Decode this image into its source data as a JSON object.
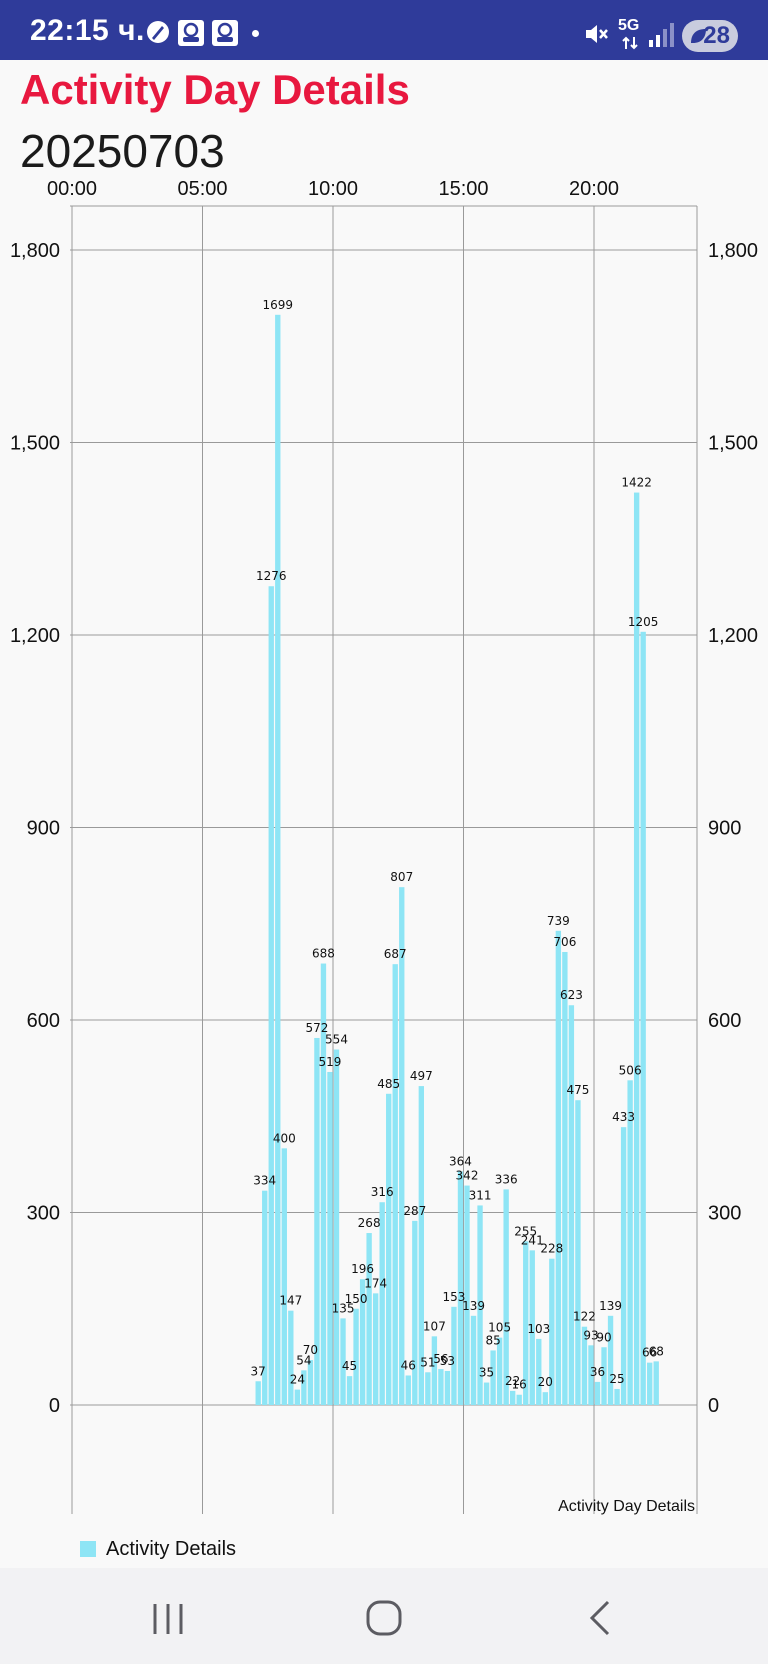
{
  "status_bar": {
    "time": "22:15 ч.",
    "network": "5G",
    "battery": "28",
    "icons": [
      "compass-icon",
      "user-badge-icon",
      "user-badge-icon",
      "notification-dot",
      "mute-icon",
      "data-arrows-icon",
      "signal-icon",
      "battery-icon"
    ]
  },
  "header": {
    "title": "Activity Day Details",
    "date": "20250703"
  },
  "colors": {
    "title": "#e8183f",
    "status_bar": "#2f3b9a",
    "bar_fill": "#8ee5f5",
    "grid": "#9a9a9a"
  },
  "chart_data": {
    "type": "bar",
    "description": "Activity Day Details",
    "legend": [
      {
        "label": "Activity Details",
        "color": "#8ee5f5"
      }
    ],
    "x_axis_position": "top",
    "x_ticks": [
      "00:00",
      "05:00",
      "10:00",
      "15:00",
      "20:00"
    ],
    "xlim_hours": [
      0,
      24
    ],
    "y_ticks": [
      "0",
      "300",
      "600",
      "900",
      "1,200",
      "1,500",
      "1,800"
    ],
    "ylim": [
      0,
      1800
    ],
    "y_axis_both_sides": true,
    "grid": true,
    "bar_interval_minutes": 15,
    "points": [
      {
        "time": "07:00",
        "value": 37
      },
      {
        "time": "07:15",
        "value": 334
      },
      {
        "time": "07:30",
        "value": 1276
      },
      {
        "time": "07:45",
        "value": 1699
      },
      {
        "time": "08:00",
        "value": 400
      },
      {
        "time": "08:15",
        "value": 147
      },
      {
        "time": "08:30",
        "value": 24
      },
      {
        "time": "08:45",
        "value": 54
      },
      {
        "time": "09:00",
        "value": 70
      },
      {
        "time": "09:15",
        "value": 572
      },
      {
        "time": "09:30",
        "value": 688
      },
      {
        "time": "09:45",
        "value": 519
      },
      {
        "time": "10:00",
        "value": 554
      },
      {
        "time": "10:15",
        "value": 135
      },
      {
        "time": "10:30",
        "value": 45
      },
      {
        "time": "10:45",
        "value": 150
      },
      {
        "time": "11:00",
        "value": 196
      },
      {
        "time": "11:15",
        "value": 268
      },
      {
        "time": "11:30",
        "value": 174
      },
      {
        "time": "11:45",
        "value": 316
      },
      {
        "time": "12:00",
        "value": 485
      },
      {
        "time": "12:15",
        "value": 687
      },
      {
        "time": "12:30",
        "value": 807
      },
      {
        "time": "12:45",
        "value": 46
      },
      {
        "time": "13:00",
        "value": 287
      },
      {
        "time": "13:15",
        "value": 497
      },
      {
        "time": "13:30",
        "value": 51
      },
      {
        "time": "13:45",
        "value": 107
      },
      {
        "time": "14:00",
        "value": 56
      },
      {
        "time": "14:15",
        "value": 53
      },
      {
        "time": "14:30",
        "value": 153
      },
      {
        "time": "14:45",
        "value": 364
      },
      {
        "time": "15:00",
        "value": 342
      },
      {
        "time": "15:15",
        "value": 139
      },
      {
        "time": "15:30",
        "value": 311
      },
      {
        "time": "15:45",
        "value": 35
      },
      {
        "time": "16:00",
        "value": 85
      },
      {
        "time": "16:15",
        "value": 105
      },
      {
        "time": "16:30",
        "value": 336
      },
      {
        "time": "16:45",
        "value": 22
      },
      {
        "time": "17:00",
        "value": 16
      },
      {
        "time": "17:15",
        "value": 255
      },
      {
        "time": "17:30",
        "value": 241
      },
      {
        "time": "17:45",
        "value": 103
      },
      {
        "time": "18:00",
        "value": 20
      },
      {
        "time": "18:15",
        "value": 228
      },
      {
        "time": "18:30",
        "value": 739
      },
      {
        "time": "18:45",
        "value": 706
      },
      {
        "time": "19:00",
        "value": 623
      },
      {
        "time": "19:15",
        "value": 475
      },
      {
        "time": "19:30",
        "value": 122
      },
      {
        "time": "19:45",
        "value": 93
      },
      {
        "time": "20:00",
        "value": 36
      },
      {
        "time": "20:15",
        "value": 90
      },
      {
        "time": "20:30",
        "value": 139
      },
      {
        "time": "20:45",
        "value": 25
      },
      {
        "time": "21:00",
        "value": 433
      },
      {
        "time": "21:15",
        "value": 506
      },
      {
        "time": "21:30",
        "value": 1422
      },
      {
        "time": "21:45",
        "value": 1205
      },
      {
        "time": "22:00",
        "value": 66
      },
      {
        "time": "22:15",
        "value": 68
      }
    ]
  },
  "nav": {
    "buttons": [
      "recent-apps-icon",
      "home-icon",
      "back-icon"
    ]
  }
}
